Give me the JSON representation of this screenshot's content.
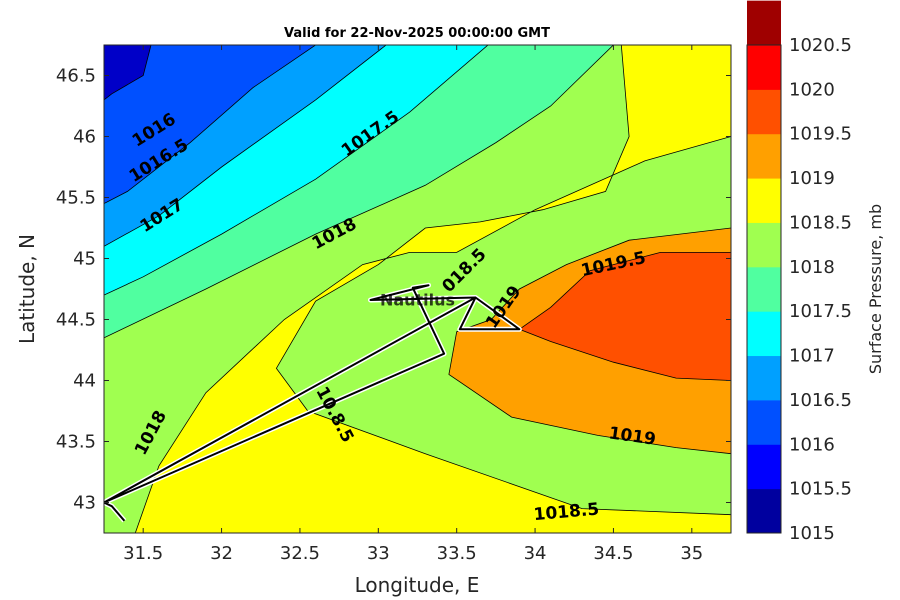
{
  "chart_data": {
    "type": "contour",
    "title": "Valid for 22-Nov-2025 00:00:00 GMT",
    "xlabel": "Longitude, E",
    "ylabel": "Latitude, N",
    "xlim": [
      31.25,
      35.25
    ],
    "ylim": [
      42.75,
      46.75
    ],
    "xticks": [
      31.5,
      32,
      32.5,
      33,
      33.5,
      34,
      34.5,
      35
    ],
    "xtick_labels": [
      "31.5",
      "32",
      "32.5",
      "33",
      "33.5",
      "34",
      "34.5",
      "35"
    ],
    "yticks": [
      43,
      43.5,
      44,
      44.5,
      45,
      45.5,
      46,
      46.5
    ],
    "ytick_labels": [
      "43",
      "43.5",
      "44",
      "44.5",
      "45",
      "45.5",
      "46",
      "46.5"
    ],
    "colorbar": {
      "title": "Surface Pressure, mb",
      "levels": [
        1015,
        1015.5,
        1016,
        1016.5,
        1017,
        1017.5,
        1018,
        1018.5,
        1019,
        1019.5,
        1020,
        1020.5
      ],
      "tick_labels": [
        "1015",
        "1015.5",
        "1016",
        "1016.5",
        "1017",
        "1017.5",
        "1018",
        "1018.5",
        "1019",
        "1019.5",
        "1020",
        "1020.5"
      ],
      "colors": [
        "#00009f",
        "#0000ff",
        "#0050ff",
        "#00a0ff",
        "#00ffff",
        "#50ffa0",
        "#a0ff50",
        "#ffff00",
        "#ffa000",
        "#ff5000",
        "#ff0000",
        "#9f0000"
      ]
    },
    "contour_bands": [
      {
        "level": 1016,
        "color": "#0050ff"
      },
      {
        "level": 1016.5,
        "color": "#00a0ff"
      },
      {
        "level": 1017,
        "color": "#00ffff"
      },
      {
        "level": 1017.5,
        "color": "#50ffa0"
      },
      {
        "level": 1018,
        "color": "#a0ff50"
      },
      {
        "level": 1018.5,
        "color": "#ffff00"
      },
      {
        "level": 1019,
        "color": "#ffa000"
      },
      {
        "level": 1019.5,
        "color": "#ff5000"
      }
    ],
    "contour_labels": [
      {
        "text": "1016",
        "lon": 31.57,
        "lat": 46.05,
        "angle": -32
      },
      {
        "text": "1016.5",
        "lon": 31.6,
        "lat": 45.8,
        "angle": -32
      },
      {
        "text": "1017",
        "lon": 31.62,
        "lat": 45.35,
        "angle": -32
      },
      {
        "text": "1017.5",
        "lon": 32.95,
        "lat": 46.02,
        "angle": -35
      },
      {
        "text": "1018",
        "lon": 32.72,
        "lat": 45.2,
        "angle": -28
      },
      {
        "text": "1018",
        "lon": 31.55,
        "lat": 43.57,
        "angle": -62
      },
      {
        "text": "018.5",
        "lon": 33.55,
        "lat": 44.9,
        "angle": -45
      },
      {
        "text": "1019",
        "lon": 33.8,
        "lat": 44.6,
        "angle": -55
      },
      {
        "text": "1019.5",
        "lon": 34.5,
        "lat": 44.95,
        "angle": -12
      },
      {
        "text": "1019",
        "lon": 34.62,
        "lat": 43.54,
        "angle": 8
      },
      {
        "text": "1018.5",
        "lon": 34.2,
        "lat": 42.92,
        "angle": -5
      },
      {
        "text": "10.8.5",
        "lon": 32.72,
        "lat": 43.72,
        "angle": 62
      }
    ],
    "place_label": {
      "text": "Nautilus",
      "lon": 33.25,
      "lat": 44.65
    },
    "track": [
      [
        31.38,
        42.85
      ],
      [
        31.3,
        42.97
      ],
      [
        31.25,
        43.0
      ],
      [
        33.62,
        44.68
      ],
      [
        33.52,
        44.42
      ],
      [
        33.9,
        44.42
      ],
      [
        33.62,
        44.68
      ],
      [
        32.95,
        44.66
      ],
      [
        33.32,
        44.78
      ],
      [
        33.22,
        44.76
      ],
      [
        33.42,
        44.22
      ],
      [
        31.25,
        43.0
      ]
    ]
  }
}
